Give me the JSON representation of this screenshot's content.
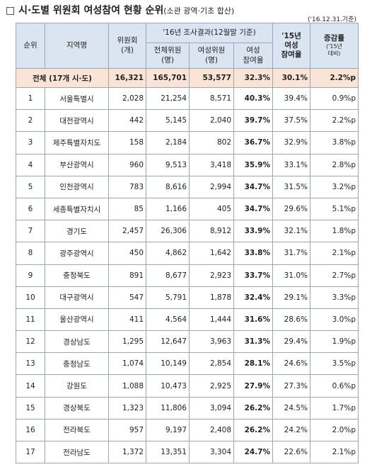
{
  "header": {
    "title": "□ 시·도별 위원회 여성참여 현황 순위",
    "subtitle": "(소관 광역·기초 합산)",
    "date": "('16.12.31.기준)"
  },
  "table": {
    "columns": {
      "rank": "순위",
      "region": "지역명",
      "committees": "위원회\n(개)",
      "group16": "'16년 조사결과(12월말 기준)",
      "total": "전체위원\n(명)",
      "women": "여성위원\n(명)",
      "rate16": "여성\n참여율",
      "rate15": "'15년\n여성\n참여율",
      "change": "증감률",
      "change_note": "('15년\n대비)"
    },
    "total_row": [
      "전체 (17개 시·도)",
      "16,321",
      "165,701",
      "53,577",
      "32.3%",
      "30.1%",
      "2.2%p"
    ],
    "rows": [
      [
        "1",
        "서울특별시",
        "2,028",
        "21,254",
        "8,571",
        "40.3%",
        "39.4%",
        "0.9%p"
      ],
      [
        "2",
        "대전광역시",
        "442",
        "5,145",
        "2,040",
        "39.7%",
        "37.5%",
        "2.2%p"
      ],
      [
        "3",
        "제주특별자치도",
        "158",
        "2,184",
        "802",
        "36.7%",
        "32.9%",
        "3.8%p"
      ],
      [
        "4",
        "부산광역시",
        "960",
        "9,513",
        "3,418",
        "35.9%",
        "33.1%",
        "2.8%p"
      ],
      [
        "5",
        "인천광역시",
        "783",
        "8,616",
        "2,994",
        "34.7%",
        "31.5%",
        "3.2%p"
      ],
      [
        "6",
        "세종특별자치시",
        "85",
        "1,166",
        "405",
        "34.7%",
        "29.6%",
        "5.1%p"
      ],
      [
        "7",
        "경기도",
        "2,457",
        "26,306",
        "8,912",
        "33.9%",
        "32.1%",
        "1.8%p"
      ],
      [
        "8",
        "광주광역시",
        "450",
        "4,862",
        "1,642",
        "33.8%",
        "31.7%",
        "2.1%p"
      ],
      [
        "9",
        "충청북도",
        "891",
        "8,677",
        "2,923",
        "33.7%",
        "31.0%",
        "2.7%p"
      ],
      [
        "10",
        "대구광역시",
        "547",
        "5,791",
        "1,878",
        "32.4%",
        "29.1%",
        "3.3%p"
      ],
      [
        "11",
        "울산광역시",
        "411",
        "4,564",
        "1,444",
        "31.6%",
        "28.6%",
        "3.0%p"
      ],
      [
        "12",
        "경상남도",
        "1,295",
        "12,647",
        "3,963",
        "31.3%",
        "29.4%",
        "1.9%p"
      ],
      [
        "13",
        "충청남도",
        "1,074",
        "10,149",
        "2,854",
        "28.1%",
        "24.6%",
        "3.5%p"
      ],
      [
        "14",
        "강원도",
        "1,088",
        "10,473",
        "2,925",
        "27.9%",
        "27.3%",
        "0.6%p"
      ],
      [
        "15",
        "경상북도",
        "1,323",
        "11,806",
        "3,094",
        "26.2%",
        "24.5%",
        "1.7%p"
      ],
      [
        "16",
        "전라북도",
        "957",
        "9,197",
        "2,408",
        "26.2%",
        "24.2%",
        "2.0%p"
      ],
      [
        "17",
        "전라남도",
        "1,372",
        "13,351",
        "3,304",
        "24.7%",
        "22.6%",
        "2.1%p"
      ]
    ]
  }
}
